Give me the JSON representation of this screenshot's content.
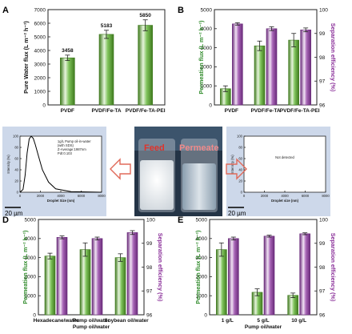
{
  "colors": {
    "green_dark": "#3f7a1e",
    "green_mid": "#7fc35b",
    "green_light": "#e6f4dc",
    "purple_dark": "#6a2b7a",
    "purple_mid": "#a765b6",
    "purple_light": "#f1e3f4",
    "flux_text": "#2f8a2a",
    "eff_text": "#8a2f99",
    "value_text": "#9a3aa0",
    "arrow": "#e06a5a",
    "feed_text": "#e0322a",
    "permeate_text": "#f08a8a",
    "spectrum_bg": "#cdd8ea",
    "jar_bg": "#243446"
  },
  "chart_data": [
    {
      "panel": "A",
      "type": "bar",
      "categories": [
        "PVDF",
        "PVDF/Fe-TA",
        "PVDF/Fe-TA-PEI"
      ],
      "values": [
        3458,
        5183,
        5850
      ],
      "value_labels": [
        "3458",
        "5183",
        "5850"
      ],
      "errors": [
        200,
        300,
        400
      ],
      "ylabel": "Pure Water flux (L m⁻² h⁻¹)",
      "ylim": [
        0,
        7000
      ],
      "yticks": [
        "0",
        "1000",
        "2000",
        "3000",
        "4000",
        "5000",
        "6000",
        "7000"
      ]
    },
    {
      "panel": "B",
      "type": "bar",
      "categories": [
        "PVDF",
        "PVDF/Fe-TA",
        "PVDF/Fe-TA-PEI"
      ],
      "series": [
        {
          "name": "Permeation flux",
          "axis": "left",
          "values": [
            850,
            3100,
            3400
          ],
          "errors": [
            150,
            250,
            350
          ]
        },
        {
          "name": "Separation efficiency",
          "axis": "right",
          "values": [
            99.4,
            99.2,
            99.15
          ],
          "errors": [
            0.05,
            0.08,
            0.08
          ]
        }
      ],
      "ylabel_left": "Permeation flux (L m⁻² h⁻¹)",
      "ylabel_right": "Separation efficiency (%)",
      "ylim_left": [
        0,
        5000
      ],
      "ylim_right": [
        96,
        100
      ],
      "yticks_left": [
        "0",
        "1000",
        "2000",
        "3000",
        "4000",
        "5000"
      ],
      "yticks_right": [
        "96",
        "97",
        "98",
        "99",
        "100"
      ]
    },
    {
      "panel": "C",
      "type": "line",
      "name": "size distribution left",
      "x": [
        0,
        300,
        500,
        700,
        900,
        1100,
        1300,
        1500,
        1800,
        2200,
        2800,
        3500,
        5000,
        8000
      ],
      "y": [
        0,
        5,
        30,
        70,
        95,
        100,
        96,
        85,
        65,
        40,
        18,
        6,
        1,
        0
      ],
      "annotation": [
        "1g/L Pump oil-in-water",
        "(with SDS)",
        "Z-Average:1987nm",
        "PdI:0.103"
      ],
      "xlabel": "Droplet Size (nm)",
      "ylabel": "Intensity (%)",
      "xlim": [
        0,
        8000
      ],
      "ylim": [
        0,
        100
      ],
      "xticks": [
        "0",
        "2000",
        "4000",
        "6000",
        "8000"
      ],
      "yticks": [
        "0",
        "20",
        "40",
        "60",
        "80",
        "100"
      ]
    },
    {
      "panel": "C",
      "type": "line",
      "name": "size distribution right",
      "x": [],
      "y": [],
      "annotation": [
        "Not detected"
      ],
      "xlabel": "Droplet size (nm)",
      "ylabel": "Intensity (%)",
      "xlim": [
        0,
        8000
      ],
      "ylim": [
        0,
        100
      ],
      "xticks": [
        "0",
        "2000",
        "4000",
        "6000",
        "8000"
      ],
      "yticks": [
        "0",
        "20",
        "40",
        "60",
        "80",
        "100"
      ]
    },
    {
      "panel": "D",
      "type": "bar",
      "categories": [
        "Hexadecane/water",
        "Pump oil/water",
        "Soybean oil/water"
      ],
      "series": [
        {
          "name": "Permeation flux",
          "axis": "left",
          "values": [
            3080,
            3420,
            3000
          ],
          "errors": [
            150,
            350,
            200
          ]
        },
        {
          "name": "Separation efficiency",
          "axis": "right",
          "values": [
            99.25,
            99.2,
            99.45
          ],
          "errors": [
            0.06,
            0.06,
            0.08
          ]
        }
      ],
      "xlabel": "Pump oil/water",
      "ylabel_left": "Permeation flux (L m⁻² h⁻¹)",
      "ylabel_right": "Separation efficiency (%)",
      "ylim_left": [
        0,
        5000
      ],
      "ylim_right": [
        96,
        100
      ],
      "yticks_left": [
        "0",
        "1000",
        "2000",
        "3000",
        "4000",
        "5000"
      ],
      "yticks_right": [
        "96",
        "97",
        "98",
        "99",
        "100"
      ]
    },
    {
      "panel": "E",
      "type": "bar",
      "categories": [
        "1 g/L",
        "5 g/L",
        "10 g/L"
      ],
      "series": [
        {
          "name": "Permeation flux",
          "axis": "left",
          "values": [
            3420,
            1180,
            1020
          ],
          "errors": [
            350,
            180,
            120
          ]
        },
        {
          "name": "Separation efficiency",
          "axis": "right",
          "values": [
            99.2,
            99.3,
            99.4
          ],
          "errors": [
            0.06,
            0.04,
            0.04
          ]
        }
      ],
      "xlabel": "Pump oil/water",
      "ylabel_left": "Permeation flux (L m⁻² h⁻¹)",
      "ylabel_right": "Separation efficiency (%)",
      "ylim_left": [
        0,
        5000
      ],
      "ylim_right": [
        96,
        100
      ],
      "yticks_left": [
        "0",
        "1000",
        "2000",
        "3000",
        "4000",
        "5000"
      ],
      "yticks_right": [
        "96",
        "97",
        "98",
        "99",
        "100"
      ]
    }
  ],
  "panel_letters": [
    "A",
    "B",
    "C",
    "D",
    "E"
  ],
  "photos": {
    "feed_label": "Feed",
    "permeate_label": "Permeate",
    "scale_bar": "20 µm"
  }
}
